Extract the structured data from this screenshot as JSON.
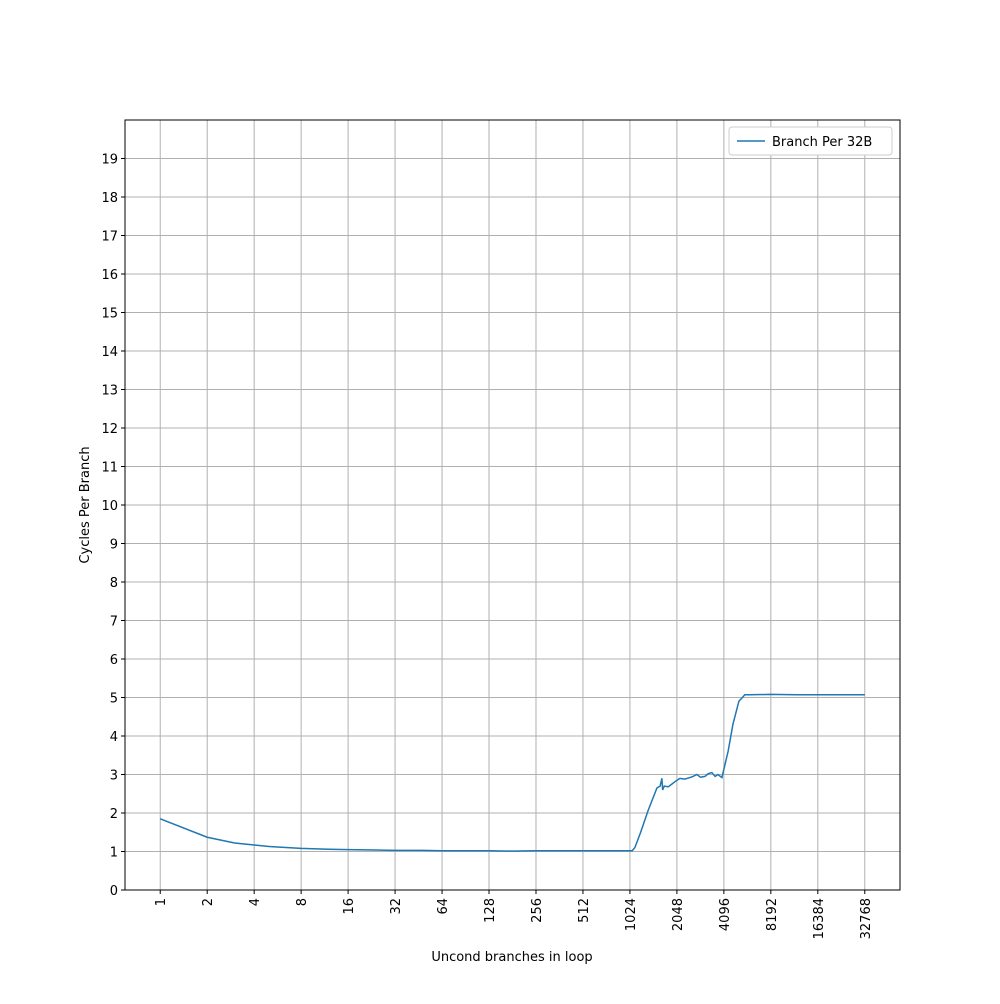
{
  "chart_data": {
    "type": "line",
    "xlabel": "Uncond branches in loop",
    "ylabel": "Cycles Per Branch",
    "xscale": "log2",
    "x": [
      1,
      2,
      3,
      4,
      5,
      6,
      8,
      12,
      16,
      24,
      32,
      48,
      64,
      96,
      128,
      180,
      256,
      384,
      512,
      768,
      1024,
      1060,
      1101,
      1200,
      1335,
      1525,
      1600,
      1641,
      1660,
      1700,
      1800,
      1900,
      2000,
      2140,
      2300,
      2480,
      2600,
      2750,
      2900,
      3100,
      3250,
      3430,
      3600,
      3750,
      3980,
      4360,
      4680,
      5110,
      5580,
      6000,
      8060,
      12000,
      16384,
      24000,
      32768
    ],
    "series": [
      {
        "name": "Branch Per 32B",
        "color": "#1f77b4",
        "values": [
          1.85,
          1.37,
          1.22,
          1.17,
          1.13,
          1.11,
          1.08,
          1.06,
          1.05,
          1.04,
          1.03,
          1.03,
          1.02,
          1.02,
          1.02,
          1.01,
          1.02,
          1.02,
          1.02,
          1.02,
          1.02,
          1.02,
          1.1,
          1.5,
          2.05,
          2.65,
          2.7,
          2.9,
          2.6,
          2.7,
          2.68,
          2.75,
          2.82,
          2.9,
          2.88,
          2.92,
          2.95,
          3.0,
          2.93,
          2.95,
          3.02,
          3.05,
          2.95,
          3.0,
          2.92,
          3.6,
          4.3,
          4.9,
          5.07,
          5.07,
          5.08,
          5.07,
          5.07,
          5.07,
          5.07
        ]
      }
    ],
    "xlim": [
      0.5946,
      55109
    ],
    "ylim": [
      0,
      20
    ],
    "xticks": [
      1,
      2,
      4,
      8,
      16,
      32,
      64,
      128,
      256,
      512,
      1024,
      2048,
      4096,
      8192,
      16384,
      32768
    ],
    "yticks": [
      0,
      1,
      2,
      3,
      4,
      5,
      6,
      7,
      8,
      9,
      10,
      11,
      12,
      13,
      14,
      15,
      16,
      17,
      18,
      19
    ],
    "grid": true,
    "legend": "upper right"
  }
}
